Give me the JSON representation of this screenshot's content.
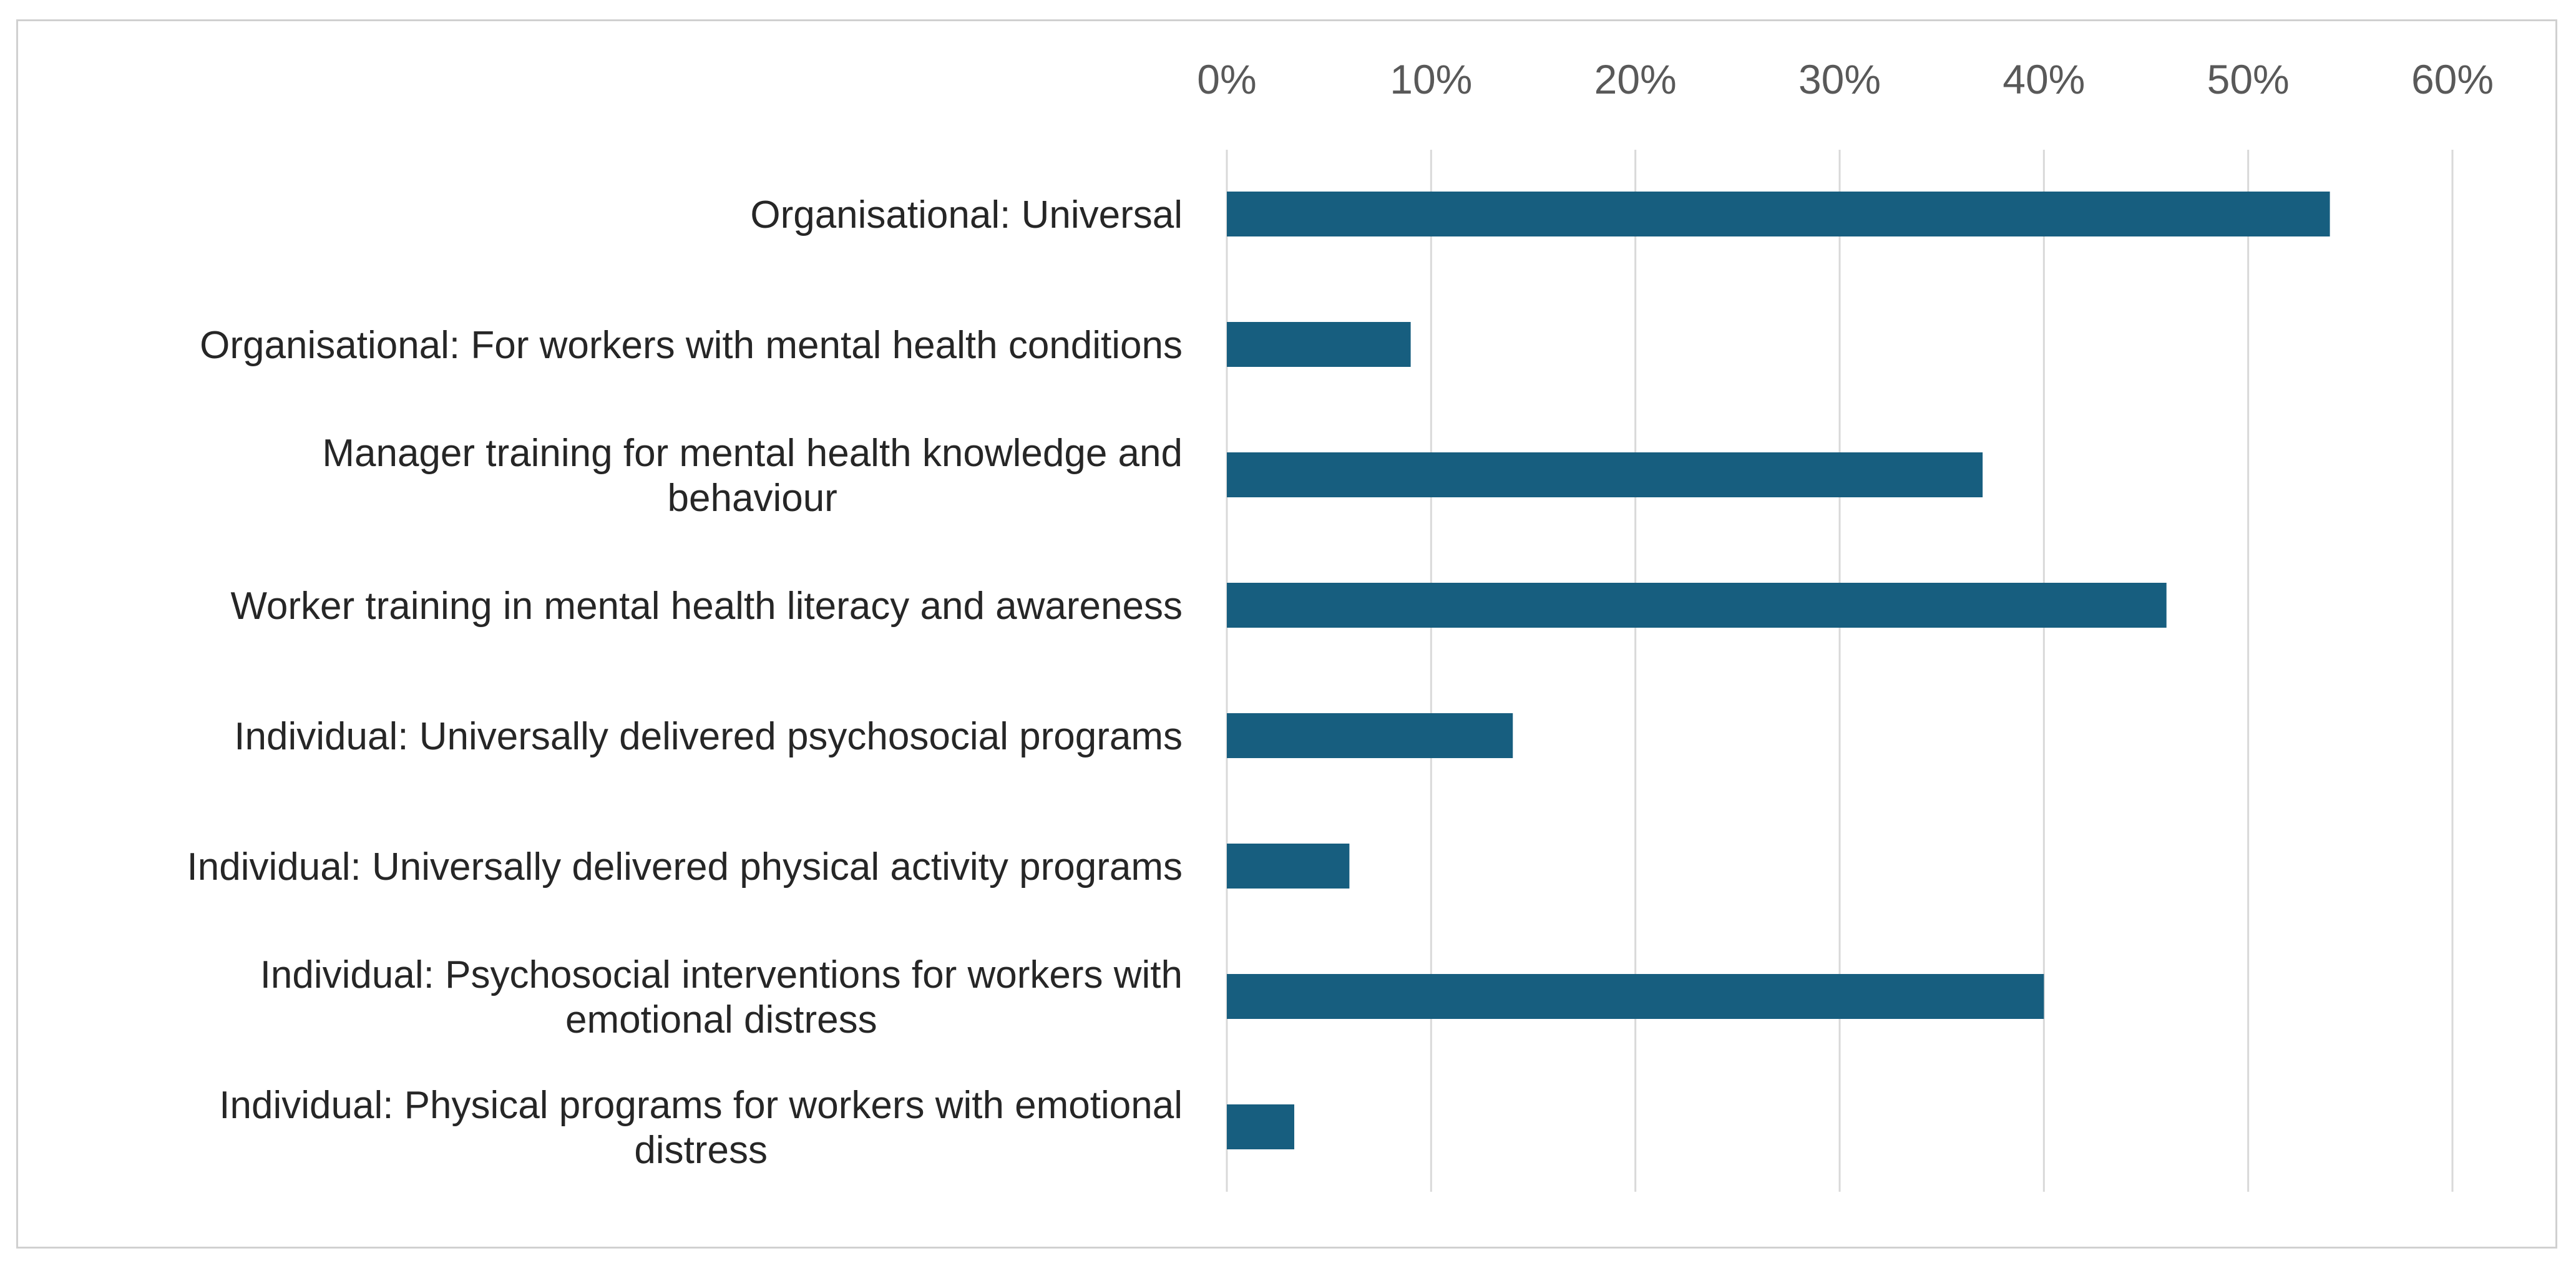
{
  "chart_data": {
    "type": "bar",
    "orientation": "horizontal",
    "categories": [
      [
        "Organisational: Universal"
      ],
      [
        "Organisational: For workers with mental health conditions"
      ],
      [
        "Manager training for mental health knowledge and",
        "behaviour"
      ],
      [
        "Worker training in mental health literacy and awareness"
      ],
      [
        "Individual: Universally delivered psychosocial programs"
      ],
      [
        "Individual: Universally delivered physical activity programs"
      ],
      [
        "Individual: Psychosocial interventions for workers with",
        "emotional distress"
      ],
      [
        "Individual: Physical programs for workers with emotional",
        "distress"
      ]
    ],
    "values": [
      0.54,
      0.09,
      0.37,
      0.46,
      0.14,
      0.06,
      0.4,
      0.033
    ],
    "xlim": [
      0,
      0.6
    ],
    "ticks": [
      0,
      0.1,
      0.2,
      0.3,
      0.4,
      0.5,
      0.6
    ],
    "tick_labels": [
      "0%",
      "10%",
      "20%",
      "30%",
      "40%",
      "50%",
      "60%"
    ],
    "axis_position": "top",
    "grid": true,
    "legend": "none",
    "colors": {
      "bar": "#175E7F",
      "grid": "#D9D9D9",
      "tick_text": "#595959",
      "label_text": "#262626",
      "frame": "#D0D0D0"
    }
  }
}
